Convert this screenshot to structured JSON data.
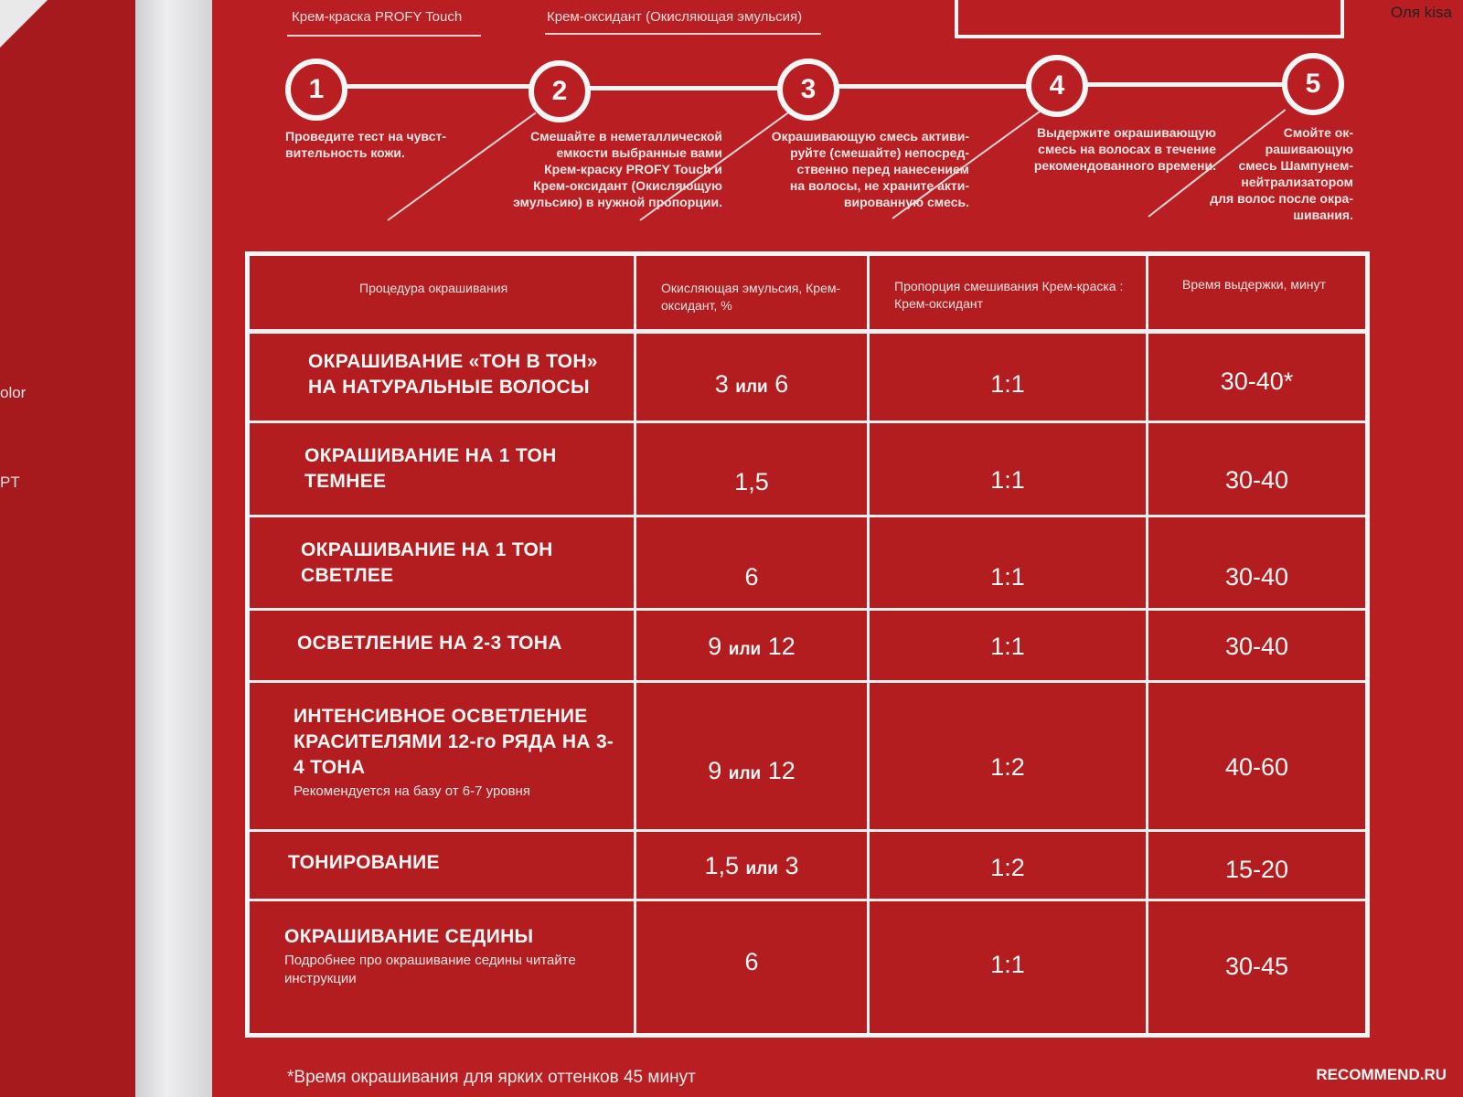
{
  "photo": {
    "user_watermark": "Оля kisa",
    "site_watermark": "RECOMMEND.RU",
    "left_sheet_fragments": [
      "olor",
      "PT"
    ]
  },
  "top_labels": {
    "cream_paint": "Крем-краска PROFY Touch",
    "oxidant": "Крем-оксидант (Окисляющая эмульсия)"
  },
  "steps": [
    {
      "num": "1",
      "text": [
        "Проведите тест на чувст-",
        "вительность кожи."
      ]
    },
    {
      "num": "2",
      "text": [
        "Смешайте в неметаллической",
        "емкости выбранные вами",
        "Крем-краску PROFY Touch и",
        "Крем-оксидант (Окисляющую",
        "эмульсию) в нужной пропорции."
      ]
    },
    {
      "num": "3",
      "text": [
        "Окрашивающую смесь активи-",
        "руйте (смешайте) непосред-",
        "ственно перед нанесением",
        "на волосы, не храните акти-",
        "вированную смесь."
      ]
    },
    {
      "num": "4",
      "text": [
        "Выдержите окрашивающую",
        "смесь на волосах в течение",
        "рекомендованного времени."
      ]
    },
    {
      "num": "5",
      "text": [
        "Смойте ок-",
        "рашивающую",
        "смесь Шампунем-",
        "нейтрализатором",
        "для волос после окра-",
        "шивания."
      ]
    }
  ],
  "table": {
    "headers": [
      "Процедура окрашивания",
      "Окисляющая эмульсия, Крем-оксидант, %",
      "Пропорция смешивания Крем-краска : Крем-оксидант",
      "Время выдержки, минут"
    ],
    "rows": [
      {
        "procedure": "ОКРАШИВАНИЕ «ТОН В ТОН» НА НАТУРАЛЬНЫЕ ВОЛОСЫ",
        "note": "",
        "ox_a": "3",
        "ox_or": "или",
        "ox_b": "6",
        "ratio": "1:1",
        "time": "30-40*"
      },
      {
        "procedure": "ОКРАШИВАНИЕ НА 1 ТОН ТЕМНЕЕ",
        "note": "",
        "ox_a": "1,5",
        "ox_or": "",
        "ox_b": "",
        "ratio": "1:1",
        "time": "30-40"
      },
      {
        "procedure": "ОКРАШИВАНИЕ НА 1 ТОН СВЕТЛЕЕ",
        "note": "",
        "ox_a": "6",
        "ox_or": "",
        "ox_b": "",
        "ratio": "1:1",
        "time": "30-40"
      },
      {
        "procedure": "ОСВЕТЛЕНИЕ НА 2-3 ТОНА",
        "note": "",
        "ox_a": "9",
        "ox_or": "или",
        "ox_b": "12",
        "ratio": "1:1",
        "time": "30-40"
      },
      {
        "procedure": "ИНТЕНСИВНОЕ ОСВЕТЛЕНИЕ КРАСИТЕЛЯМИ 12-го РЯДА НА 3-4 ТОНА",
        "note": "Рекомендуется на базу от 6-7 уровня",
        "ox_a": "9",
        "ox_or": "или",
        "ox_b": "12",
        "ratio": "1:2",
        "time": "40-60"
      },
      {
        "procedure": "ТОНИРОВАНИЕ",
        "note": "",
        "ox_a": "1,5",
        "ox_or": "или",
        "ox_b": "3",
        "ratio": "1:2",
        "time": "15-20"
      },
      {
        "procedure": "ОКРАШИВАНИЕ СЕДИНЫ",
        "note": "Подробнее про окрашивание седины читайте инструкции",
        "ox_a": "6",
        "ox_or": "",
        "ox_b": "",
        "ratio": "1:1",
        "time": "30-45"
      }
    ]
  },
  "footnote": "*Время окрашивания для ярких оттенков 45 минут"
}
